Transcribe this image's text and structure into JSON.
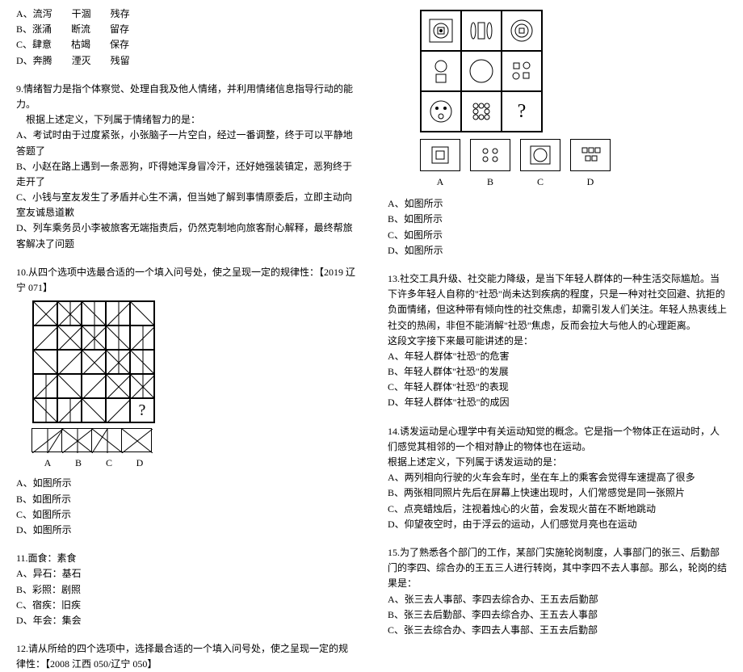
{
  "left": {
    "q8_options": [
      "A、流泻　　干涸　　残存",
      "B、涨涌　　断流　　留存",
      "C、肆意　　枯竭　　保存",
      "D、奔腾　　湮灭　　残留"
    ],
    "q9_stem1": "9.情绪智力是指个体察觉、处理自我及他人情绪，并利用情绪信息指导行动的能力。",
    "q9_stem2": "根据上述定义，下列属于情绪智力的是：",
    "q9_options": [
      "A、考试时由于过度紧张，小张脑子一片空白，经过一番调整，终于可以平静地答题了",
      "B、小赵在路上遇到一条恶狗，吓得她浑身冒冷汗，还好她强装镇定，恶狗终于走开了",
      "C、小钱与室友发生了矛盾并心生不满，但当她了解到事情原委后，立即主动向室友诚恳道歉",
      "D、列车乘务员小李被旅客无端指责后，仍然克制地向旅客耐心解释，最终帮旅客解决了问题"
    ],
    "q10_stem": "10.从四个选项中选最合适的一个填入问号处，使之呈现一定的规律性：【2019 辽宁 071】",
    "q10_img_options": [
      "A、如图所示",
      "B、如图所示",
      "C、如图所示",
      "D、如图所示"
    ],
    "q10_labels": [
      "A",
      "B",
      "C",
      "D"
    ],
    "q11_stem": "11.面食：素食",
    "q11_options": [
      "A、异石：基石",
      "B、彩照：剧照",
      "C、宿疾：旧疾",
      "D、年会：集会"
    ],
    "q12_stem": "12.请从所给的四个选项中，选择最合适的一个填入问号处，使之呈现一定的规律性：【2008 江西 050/辽宁 050】"
  },
  "right": {
    "q12_labels": [
      "A",
      "B",
      "C",
      "D"
    ],
    "q12_img_options": [
      "A、如图所示",
      "B、如图所示",
      "C、如图所示",
      "D、如图所示"
    ],
    "q13_stem": "13.社交工具升级、社交能力降级，是当下年轻人群体的一种生活交际尴尬。当下许多年轻人自称的\"社恐\"尚未达到疾病的程度，只是一种对社交回避、抗拒的负面情绪，但这种带有倾向性的社交焦虑，却需引发人们关注。年轻人热衷线上社交的热闹，非但不能消解\"社恐\"焦虑，反而会拉大与他人的心理距离。",
    "q13_stem2": "这段文字接下来最可能讲述的是：",
    "q13_options": [
      "A、年轻人群体\"社恐\"的危害",
      "B、年轻人群体\"社恐\"的发展",
      "C、年轻人群体\"社恐\"的表现",
      "D、年轻人群体\"社恐\"的成因"
    ],
    "q14_stem1": "14.诱发运动是心理学中有关运动知觉的概念。它是指一个物体正在运动时，人们感觉其相邻的一个相对静止的物体也在运动。",
    "q14_stem2": "根据上述定义，下列属于诱发运动的是：",
    "q14_options": [
      "A、两列相向行驶的火车会车时，坐在车上的乘客会觉得车速提高了很多",
      "B、两张相同照片先后在屏幕上快速出现时，人们常感觉是同一张照片",
      "C、点亮蜡烛后，注视着烛心的火苗，会发现火苗在不断地跳动",
      "D、仰望夜空时，由于浮云的运动，人们感觉月亮也在运动"
    ],
    "q15_stem": "15.为了熟悉各个部门的工作，某部门实施轮岗制度，人事部门的张三、后勤部门的李四、综合办的王五三人进行转岗，其中李四不去人事部。那么，轮岗的结果是：",
    "q15_options": [
      "A、张三去人事部、李四去综合办、王五去后勤部",
      "B、张三去后勤部、李四去综合办、王五去人事部",
      "C、张三去综合办、李四去人事部、王五去后勤部"
    ]
  }
}
